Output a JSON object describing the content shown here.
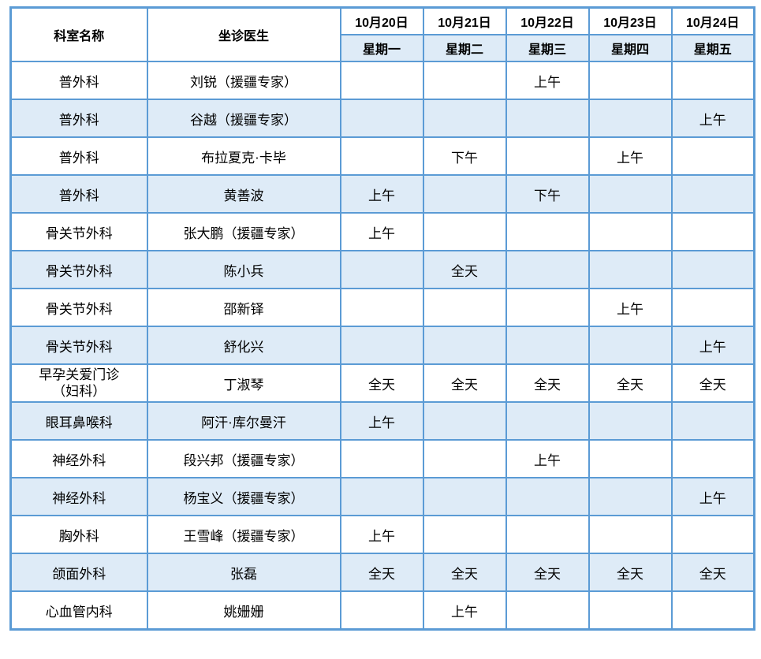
{
  "table": {
    "header": {
      "department": "科室名称",
      "doctor": "坐诊医生",
      "days": [
        {
          "date": "10月20日",
          "weekday": "星期一"
        },
        {
          "date": "10月21日",
          "weekday": "星期二"
        },
        {
          "date": "10月22日",
          "weekday": "星期三"
        },
        {
          "date": "10月23日",
          "weekday": "星期四"
        },
        {
          "date": "10月24日",
          "weekday": "星期五"
        }
      ]
    },
    "rows": [
      {
        "department": "普外科",
        "doctor": "刘锐（援疆专家）",
        "schedule": [
          "",
          "",
          "上午",
          "",
          ""
        ]
      },
      {
        "department": "普外科",
        "doctor": "谷越（援疆专家）",
        "schedule": [
          "",
          "",
          "",
          "",
          "上午"
        ]
      },
      {
        "department": "普外科",
        "doctor": "布拉夏克·卡毕",
        "schedule": [
          "",
          "下午",
          "",
          "上午",
          ""
        ]
      },
      {
        "department": "普外科",
        "doctor": "黄善波",
        "schedule": [
          "上午",
          "",
          "下午",
          "",
          ""
        ]
      },
      {
        "department": "骨关节外科",
        "doctor": "张大鹏（援疆专家）",
        "schedule": [
          "上午",
          "",
          "",
          "",
          ""
        ]
      },
      {
        "department": "骨关节外科",
        "doctor": "陈小兵",
        "schedule": [
          "",
          "全天",
          "",
          "",
          ""
        ]
      },
      {
        "department": "骨关节外科",
        "doctor": "邵新铎",
        "schedule": [
          "",
          "",
          "",
          "上午",
          ""
        ]
      },
      {
        "department": "骨关节外科",
        "doctor": "舒化兴",
        "schedule": [
          "",
          "",
          "",
          "",
          "上午"
        ]
      },
      {
        "department": "早孕关爱门诊",
        "department2": "（妇科）",
        "doctor": "丁淑琴",
        "schedule": [
          "全天",
          "全天",
          "全天",
          "全天",
          "全天"
        ]
      },
      {
        "department": "眼耳鼻喉科",
        "doctor": "阿汗·库尔曼汗",
        "schedule": [
          "上午",
          "",
          "",
          "",
          ""
        ]
      },
      {
        "department": "神经外科",
        "doctor": "段兴邦（援疆专家）",
        "schedule": [
          "",
          "",
          "上午",
          "",
          ""
        ]
      },
      {
        "department": "神经外科",
        "doctor": "杨宝义（援疆专家）",
        "schedule": [
          "",
          "",
          "",
          "",
          "上午"
        ]
      },
      {
        "department": "胸外科",
        "doctor": "王雪峰（援疆专家）",
        "schedule": [
          "上午",
          "",
          "",
          "",
          ""
        ]
      },
      {
        "department": "颌面外科",
        "doctor": "张磊",
        "schedule": [
          "全天",
          "全天",
          "全天",
          "全天",
          "全天"
        ]
      },
      {
        "department": "心血管内科",
        "doctor": "姚姗姗",
        "schedule": [
          "",
          "上午",
          "",
          "",
          ""
        ]
      }
    ]
  },
  "colors": {
    "border_blue": "#5B9BD5",
    "alt_row_bg": "#DEEBF7",
    "text": "#000000"
  }
}
